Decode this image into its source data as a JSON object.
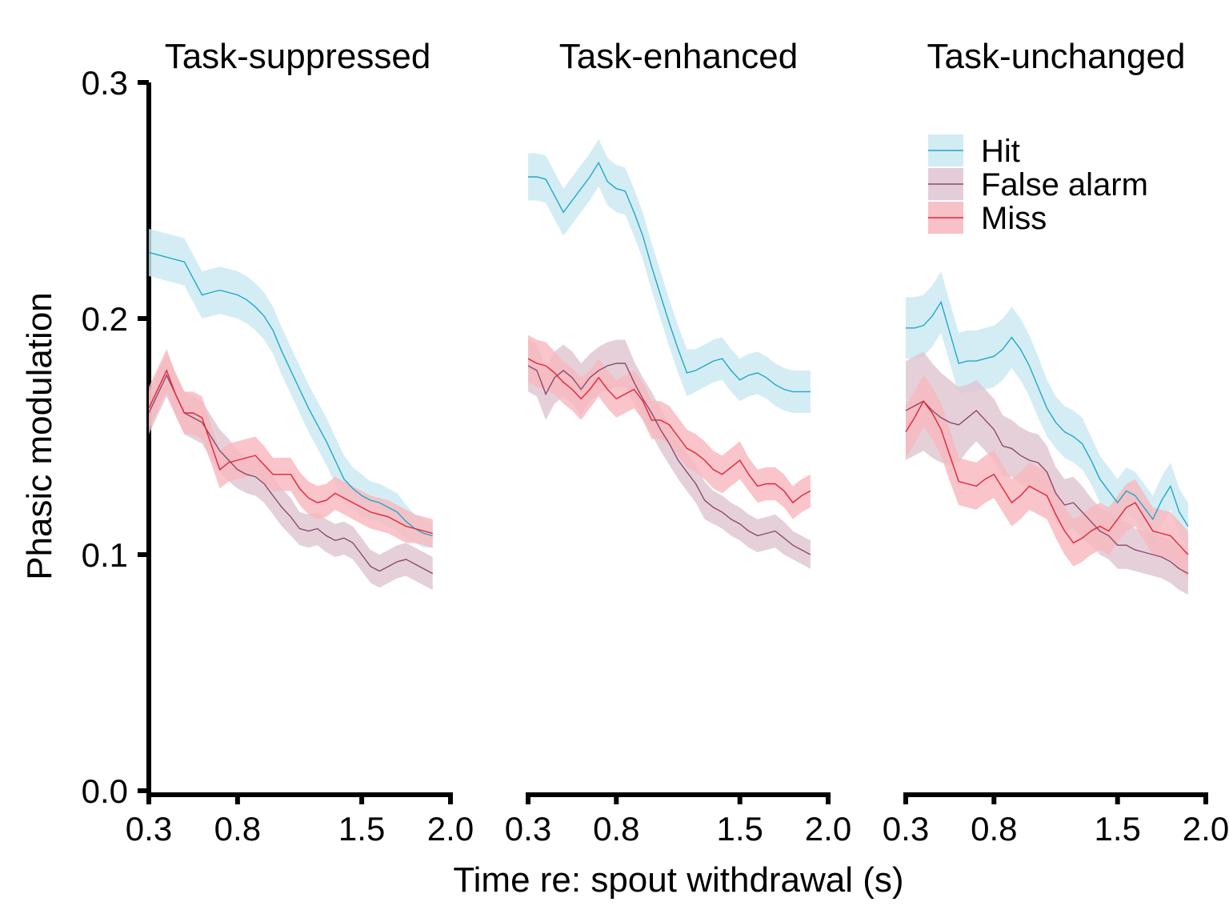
{
  "chart_data": {
    "type": "line",
    "ylabel": "Phasic modulation",
    "xlabel": "Time re: spout withdrawal (s)",
    "ylim": [
      0,
      0.3
    ],
    "yticks": [
      "0.0",
      "0.1",
      "0.2",
      "0.3"
    ],
    "xlim": [
      0.3,
      2.0
    ],
    "xticks": [
      "0.3",
      "0.8",
      "1.5",
      "2.0"
    ],
    "xtick_values": [
      0.3,
      0.8,
      1.5,
      2.0
    ],
    "grid": false,
    "legend_position": "top-right",
    "colors": {
      "Hit": "#1fa8c9",
      "False alarm": "#8e4a6e",
      "Miss": "#e3243b"
    },
    "fills": {
      "Hit": "#c9e9f1",
      "False alarm": "#dfc4d1",
      "Miss": "#f7b6bd"
    },
    "legend": [
      "Hit",
      "False alarm",
      "Miss"
    ],
    "x": [
      0.3,
      0.35,
      0.4,
      0.45,
      0.5,
      0.55,
      0.6,
      0.65,
      0.7,
      0.75,
      0.8,
      0.85,
      0.9,
      0.95,
      1.0,
      1.05,
      1.1,
      1.15,
      1.2,
      1.25,
      1.3,
      1.35,
      1.4,
      1.45,
      1.5,
      1.55,
      1.6,
      1.65,
      1.7,
      1.75,
      1.8,
      1.85,
      1.9
    ],
    "panels": [
      {
        "title": "Task-suppressed",
        "series": [
          {
            "name": "Hit",
            "values": [
              0.228,
              0.227,
              0.226,
              0.225,
              0.224,
              0.217,
              0.21,
              0.211,
              0.212,
              0.211,
              0.21,
              0.208,
              0.205,
              0.201,
              0.195,
              0.186,
              0.178,
              0.17,
              0.162,
              0.155,
              0.148,
              0.14,
              0.132,
              0.128,
              0.125,
              0.123,
              0.122,
              0.12,
              0.118,
              0.114,
              0.111,
              0.109,
              0.108
            ],
            "err": [
              0.01,
              0.01,
              0.01,
              0.01,
              0.01,
              0.01,
              0.01,
              0.01,
              0.01,
              0.01,
              0.01,
              0.01,
              0.01,
              0.01,
              0.01,
              0.01,
              0.01,
              0.01,
              0.01,
              0.01,
              0.01,
              0.01,
              0.01,
              0.009,
              0.009,
              0.008,
              0.008,
              0.008,
              0.008,
              0.007,
              0.006,
              0.006,
              0.005
            ]
          },
          {
            "name": "False alarm",
            "values": [
              0.16,
              0.168,
              0.176,
              0.168,
              0.16,
              0.158,
              0.156,
              0.15,
              0.144,
              0.14,
              0.136,
              0.134,
              0.133,
              0.13,
              0.125,
              0.12,
              0.116,
              0.111,
              0.11,
              0.111,
              0.108,
              0.106,
              0.107,
              0.105,
              0.1,
              0.095,
              0.093,
              0.095,
              0.097,
              0.098,
              0.096,
              0.094,
              0.092
            ],
            "err": [
              0.009,
              0.009,
              0.009,
              0.009,
              0.009,
              0.009,
              0.009,
              0.009,
              0.009,
              0.009,
              0.008,
              0.008,
              0.008,
              0.008,
              0.008,
              0.008,
              0.008,
              0.007,
              0.007,
              0.007,
              0.007,
              0.007,
              0.007,
              0.007,
              0.007,
              0.007,
              0.007,
              0.007,
              0.007,
              0.007,
              0.007,
              0.007,
              0.007
            ]
          },
          {
            "name": "Miss",
            "values": [
              0.162,
              0.17,
              0.178,
              0.168,
              0.16,
              0.16,
              0.158,
              0.147,
              0.136,
              0.139,
              0.14,
              0.141,
              0.142,
              0.138,
              0.134,
              0.134,
              0.134,
              0.128,
              0.124,
              0.122,
              0.123,
              0.126,
              0.124,
              0.122,
              0.12,
              0.118,
              0.117,
              0.116,
              0.114,
              0.112,
              0.111,
              0.11,
              0.109
            ],
            "err": [
              0.009,
              0.009,
              0.009,
              0.009,
              0.009,
              0.009,
              0.009,
              0.008,
              0.008,
              0.008,
              0.008,
              0.008,
              0.008,
              0.008,
              0.007,
              0.007,
              0.007,
              0.007,
              0.007,
              0.007,
              0.007,
              0.007,
              0.007,
              0.007,
              0.007,
              0.007,
              0.007,
              0.007,
              0.007,
              0.007,
              0.006,
              0.006,
              0.006
            ]
          }
        ]
      },
      {
        "title": "Task-enhanced",
        "series": [
          {
            "name": "Hit",
            "values": [
              0.26,
              0.26,
              0.259,
              0.252,
              0.245,
              0.25,
              0.255,
              0.26,
              0.266,
              0.258,
              0.255,
              0.254,
              0.245,
              0.235,
              0.222,
              0.21,
              0.198,
              0.187,
              0.177,
              0.178,
              0.18,
              0.182,
              0.183,
              0.178,
              0.174,
              0.176,
              0.177,
              0.175,
              0.172,
              0.17,
              0.169,
              0.169,
              0.169
            ],
            "err": [
              0.01,
              0.01,
              0.01,
              0.01,
              0.01,
              0.01,
              0.01,
              0.01,
              0.01,
              0.01,
              0.01,
              0.01,
              0.01,
              0.01,
              0.01,
              0.01,
              0.01,
              0.01,
              0.01,
              0.009,
              0.009,
              0.009,
              0.009,
              0.009,
              0.009,
              0.009,
              0.009,
              0.009,
              0.009,
              0.009,
              0.009,
              0.009,
              0.009
            ]
          },
          {
            "name": "False alarm",
            "values": [
              0.18,
              0.178,
              0.168,
              0.175,
              0.178,
              0.175,
              0.17,
              0.175,
              0.178,
              0.18,
              0.181,
              0.181,
              0.173,
              0.166,
              0.16,
              0.153,
              0.147,
              0.14,
              0.135,
              0.13,
              0.123,
              0.12,
              0.118,
              0.115,
              0.113,
              0.11,
              0.108,
              0.109,
              0.11,
              0.107,
              0.104,
              0.102,
              0.1
            ],
            "err": [
              0.011,
              0.011,
              0.011,
              0.011,
              0.011,
              0.011,
              0.011,
              0.01,
              0.01,
              0.01,
              0.01,
              0.01,
              0.009,
              0.009,
              0.009,
              0.009,
              0.009,
              0.008,
              0.008,
              0.008,
              0.008,
              0.007,
              0.007,
              0.007,
              0.007,
              0.007,
              0.007,
              0.007,
              0.007,
              0.007,
              0.006,
              0.006,
              0.006
            ]
          },
          {
            "name": "Miss",
            "values": [
              0.183,
              0.181,
              0.18,
              0.177,
              0.173,
              0.17,
              0.166,
              0.17,
              0.175,
              0.17,
              0.166,
              0.168,
              0.17,
              0.165,
              0.157,
              0.157,
              0.155,
              0.15,
              0.145,
              0.143,
              0.14,
              0.136,
              0.134,
              0.137,
              0.14,
              0.134,
              0.129,
              0.13,
              0.13,
              0.127,
              0.122,
              0.125,
              0.127
            ],
            "err": [
              0.01,
              0.01,
              0.01,
              0.009,
              0.009,
              0.009,
              0.009,
              0.008,
              0.008,
              0.008,
              0.008,
              0.008,
              0.008,
              0.008,
              0.008,
              0.008,
              0.008,
              0.008,
              0.008,
              0.008,
              0.008,
              0.008,
              0.008,
              0.008,
              0.008,
              0.007,
              0.007,
              0.007,
              0.007,
              0.007,
              0.007,
              0.007,
              0.007
            ]
          }
        ]
      },
      {
        "title": "Task-unchanged",
        "series": [
          {
            "name": "Hit",
            "values": [
              0.196,
              0.196,
              0.197,
              0.201,
              0.207,
              0.194,
              0.181,
              0.182,
              0.182,
              0.183,
              0.184,
              0.187,
              0.192,
              0.187,
              0.18,
              0.171,
              0.162,
              0.156,
              0.152,
              0.15,
              0.147,
              0.14,
              0.132,
              0.127,
              0.122,
              0.127,
              0.125,
              0.12,
              0.115,
              0.123,
              0.129,
              0.118,
              0.112
            ],
            "err": [
              0.013,
              0.013,
              0.013,
              0.013,
              0.013,
              0.013,
              0.013,
              0.013,
              0.013,
              0.013,
              0.013,
              0.013,
              0.013,
              0.013,
              0.013,
              0.013,
              0.012,
              0.011,
              0.011,
              0.011,
              0.011,
              0.01,
              0.01,
              0.01,
              0.01,
              0.01,
              0.01,
              0.01,
              0.01,
              0.01,
              0.01,
              0.01,
              0.01
            ]
          },
          {
            "name": "False alarm",
            "values": [
              0.161,
              0.163,
              0.165,
              0.161,
              0.158,
              0.156,
              0.155,
              0.158,
              0.161,
              0.157,
              0.153,
              0.146,
              0.145,
              0.142,
              0.14,
              0.139,
              0.135,
              0.126,
              0.121,
              0.122,
              0.118,
              0.114,
              0.11,
              0.108,
              0.104,
              0.104,
              0.102,
              0.101,
              0.1,
              0.099,
              0.097,
              0.094,
              0.092
            ],
            "err": [
              0.021,
              0.021,
              0.021,
              0.02,
              0.019,
              0.018,
              0.016,
              0.014,
              0.013,
              0.013,
              0.013,
              0.013,
              0.012,
              0.012,
              0.012,
              0.012,
              0.011,
              0.011,
              0.011,
              0.011,
              0.011,
              0.01,
              0.01,
              0.01,
              0.01,
              0.01,
              0.009,
              0.009,
              0.009,
              0.009,
              0.009,
              0.009,
              0.009
            ]
          },
          {
            "name": "Miss",
            "values": [
              0.152,
              0.158,
              0.165,
              0.16,
              0.153,
              0.142,
              0.131,
              0.13,
              0.129,
              0.132,
              0.134,
              0.128,
              0.122,
              0.125,
              0.129,
              0.127,
              0.125,
              0.117,
              0.11,
              0.105,
              0.107,
              0.11,
              0.112,
              0.11,
              0.115,
              0.12,
              0.122,
              0.116,
              0.11,
              0.109,
              0.108,
              0.104,
              0.1
            ],
            "err": [
              0.011,
              0.011,
              0.011,
              0.011,
              0.011,
              0.011,
              0.01,
              0.01,
              0.01,
              0.01,
              0.01,
              0.01,
              0.01,
              0.01,
              0.01,
              0.01,
              0.01,
              0.01,
              0.01,
              0.01,
              0.01,
              0.01,
              0.01,
              0.01,
              0.01,
              0.01,
              0.01,
              0.01,
              0.01,
              0.01,
              0.01,
              0.01,
              0.01
            ]
          }
        ]
      }
    ]
  }
}
